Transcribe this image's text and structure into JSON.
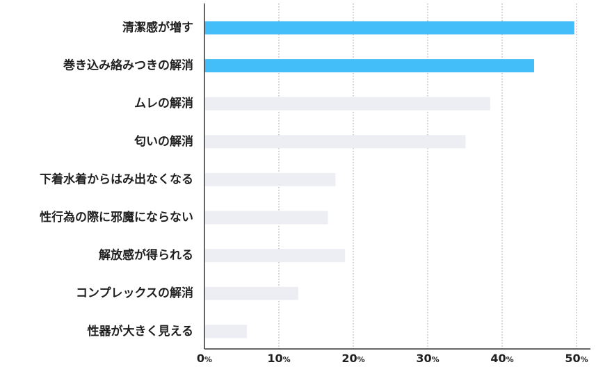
{
  "chart_data": {
    "type": "bar",
    "orientation": "horizontal",
    "title": "",
    "xlabel": "",
    "ylabel": "",
    "categories": [
      "清潔感が増す",
      "巻き込み絡みつきの解消",
      "ムレの解消",
      "匂いの解消",
      "下着水着からはみ出なくなる",
      "性行為の際に邪魔にならない",
      "解放感が得られる",
      "コンプレックスの解消",
      "性器が大きく見える"
    ],
    "values": [
      49.7,
      44.3,
      38.4,
      35.1,
      17.6,
      16.6,
      18.9,
      12.6,
      5.7
    ],
    "highlight_colors": [
      "#44bef8",
      "#44bef8",
      "#edeef3",
      "#edeef3",
      "#edeef3",
      "#edeef3",
      "#edeef3",
      "#edeef3",
      "#edeef3"
    ],
    "xlim": [
      0,
      50
    ],
    "xticks": [
      {
        "value": 0,
        "num": "0",
        "unit": "%"
      },
      {
        "value": 10,
        "num": "10",
        "unit": "%"
      },
      {
        "value": 20,
        "num": "20",
        "unit": "%"
      },
      {
        "value": 30,
        "num": "30",
        "unit": "%"
      },
      {
        "value": 40,
        "num": "40",
        "unit": "%"
      },
      {
        "value": 50,
        "num": "50",
        "unit": "%"
      }
    ],
    "grid": "vertical-dotted",
    "colors": {
      "highlight": "#44bef8",
      "default": "#edeef3",
      "axis": "#333333",
      "grid": "#9a9a9a"
    }
  }
}
